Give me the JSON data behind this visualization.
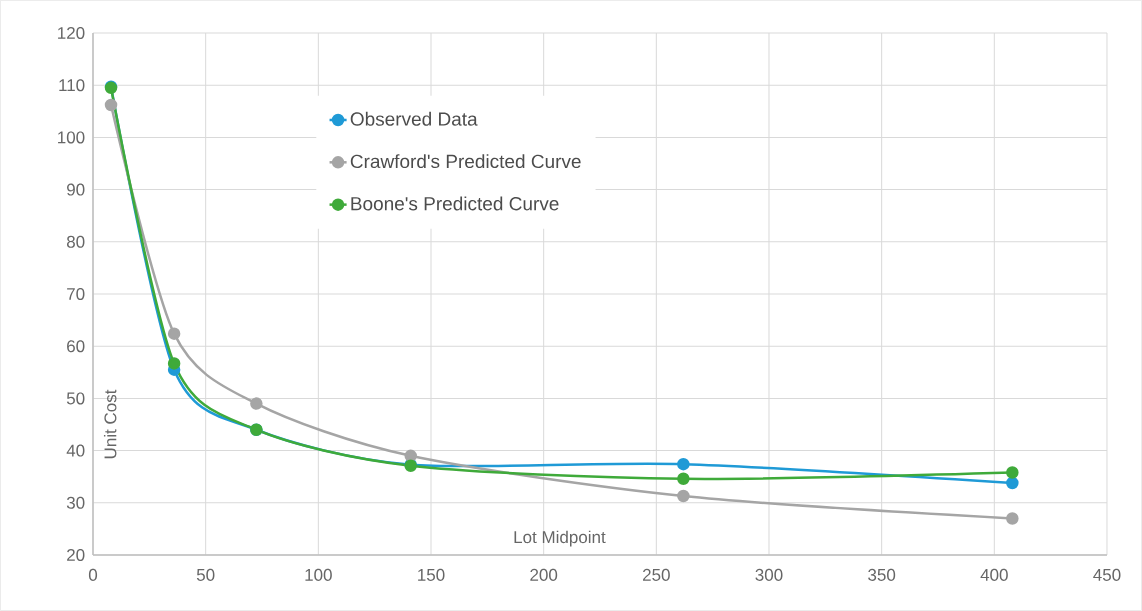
{
  "chart_data": {
    "type": "line",
    "xlabel": "Lot Midpoint",
    "ylabel": "Unit Cost",
    "x": [
      8,
      36,
      72.5,
      141,
      262,
      408
    ],
    "series": [
      {
        "name": "Observed Data",
        "color": "#1f9ad6",
        "values": [
          109.7,
          55.5,
          44.0,
          37.3,
          37.4,
          33.8
        ]
      },
      {
        "name": "Crawford's Predicted Curve",
        "color": "#a5a5a5",
        "values": [
          106.2,
          62.4,
          49.0,
          39.0,
          31.3,
          27.0
        ]
      },
      {
        "name": "Boone's Predicted Curve",
        "color": "#3faa3a",
        "values": [
          109.5,
          56.7,
          44.0,
          37.1,
          34.6,
          35.8
        ]
      }
    ],
    "xlim": [
      0,
      450
    ],
    "xticks": [
      0,
      50,
      100,
      150,
      200,
      250,
      300,
      350,
      400,
      450
    ],
    "ylim": [
      20,
      120
    ],
    "yticks": [
      20,
      30,
      40,
      50,
      60,
      70,
      80,
      90,
      100,
      110,
      120
    ],
    "grid": true,
    "legend": "top",
    "marker": "circle",
    "line_style": "solid"
  }
}
